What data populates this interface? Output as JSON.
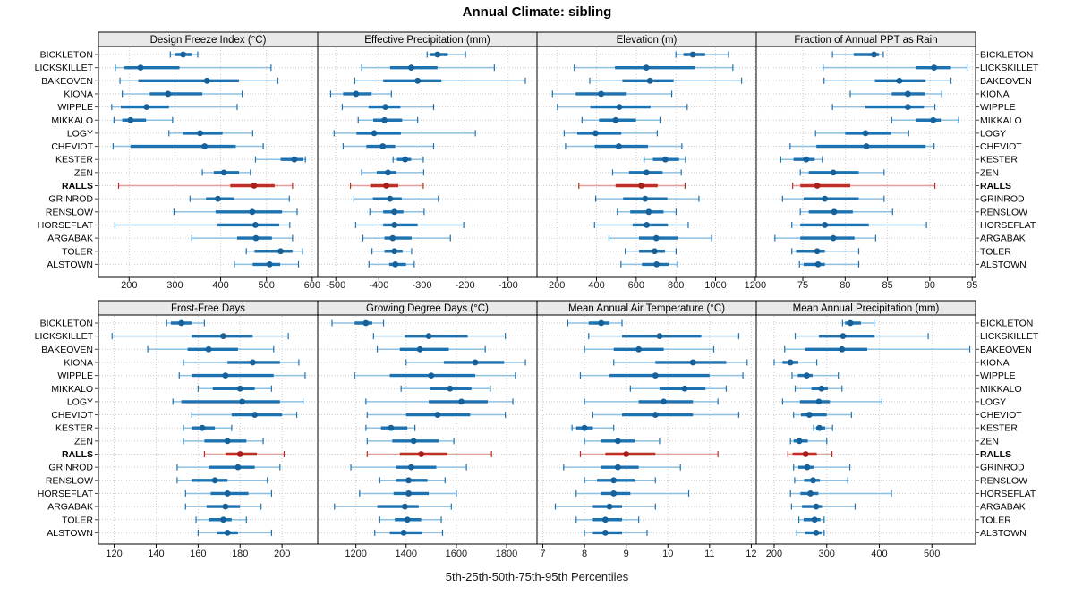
{
  "title": "Annual Climate: sibling",
  "caption": "5th-25th-50th-75th-95th Percentiles",
  "sites": [
    "BICKLETON",
    "LICKSKILLET",
    "BAKEOVEN",
    "KIONA",
    "WIPPLE",
    "MIKKALO",
    "LOGY",
    "CHEVIOT",
    "KESTER",
    "ZEN",
    "RALLS",
    "GRINROD",
    "RENSLOW",
    "HORSEFLAT",
    "ARGABAK",
    "TOLER",
    "ALSTOWN"
  ],
  "highlight_site": "RALLS",
  "colors": {
    "normal": "#1d72b2",
    "normal_light": "#8fc0e0",
    "normal_dot": "#166199",
    "highlight": "#bf2f28",
    "highlight_light": "#e29e9a",
    "highlight_dot": "#a81f1b",
    "strip_bg": "#e9e9e9",
    "grid": "#cccccc"
  },
  "chart_data": {
    "type": "scatter",
    "variant": "trellis-percentile-interval-dotplot",
    "title": "Annual Climate: sibling",
    "caption": "5th-25th-50th-75th-95th Percentiles",
    "percentiles": [
      5,
      25,
      50,
      75,
      95
    ],
    "legend_position": "none",
    "grid": "dotted",
    "layout": {
      "rows": 2,
      "cols": 4
    },
    "panels": [
      {
        "title": "Design Freeze Index (°C)",
        "xlim": [
          133,
          612
        ],
        "ticks": [
          200,
          300,
          400,
          500,
          600
        ],
        "values": [
          [
            290,
            300,
            318,
            337,
            350
          ],
          [
            170,
            190,
            225,
            310,
            510
          ],
          [
            180,
            220,
            370,
            440,
            525
          ],
          [
            185,
            245,
            285,
            360,
            447
          ],
          [
            162,
            182,
            238,
            287,
            436
          ],
          [
            167,
            185,
            203,
            237,
            295
          ],
          [
            287,
            318,
            355,
            404,
            470
          ],
          [
            165,
            203,
            365,
            433,
            493
          ],
          [
            476,
            531,
            561,
            580,
            585
          ],
          [
            360,
            385,
            407,
            440,
            465
          ],
          [
            177,
            421,
            473,
            518,
            557
          ],
          [
            333,
            368,
            394,
            428,
            550
          ],
          [
            298,
            389,
            469,
            534,
            567
          ],
          [
            169,
            393,
            476,
            528,
            551
          ],
          [
            337,
            436,
            477,
            512,
            557
          ],
          [
            456,
            474,
            531,
            557,
            579
          ],
          [
            430,
            470,
            507,
            530,
            570
          ]
        ]
      },
      {
        "title": "Effective Precipitation (mm)",
        "xlim": [
          -542,
          -33
        ],
        "ticks": [
          -500,
          -400,
          -300,
          -200,
          -100
        ],
        "values": [
          [
            -288,
            -281,
            -264,
            -240,
            -199
          ],
          [
            -440,
            -374,
            -325,
            -264,
            -132
          ],
          [
            -456,
            -390,
            -310,
            -255,
            -60
          ],
          [
            -512,
            -483,
            -453,
            -417,
            -371
          ],
          [
            -485,
            -424,
            -385,
            -350,
            -273
          ],
          [
            -448,
            -413,
            -387,
            -346,
            -310
          ],
          [
            -504,
            -452,
            -411,
            -349,
            -176
          ],
          [
            -483,
            -429,
            -391,
            -362,
            -273
          ],
          [
            -367,
            -358,
            -339,
            -325,
            -297
          ],
          [
            -440,
            -405,
            -379,
            -360,
            -296
          ],
          [
            -466,
            -420,
            -383,
            -355,
            -297
          ],
          [
            -458,
            -414,
            -374,
            -347,
            -262
          ],
          [
            -421,
            -390,
            -364,
            -343,
            -295
          ],
          [
            -454,
            -390,
            -364,
            -310,
            -203
          ],
          [
            -437,
            -387,
            -368,
            -324,
            -234
          ],
          [
            -416,
            -387,
            -364,
            -345,
            -324
          ],
          [
            -423,
            -376,
            -362,
            -337,
            -318
          ]
        ]
      },
      {
        "title": "Elevation (m)",
        "xlim": [
          100,
          1205
        ],
        "ticks": [
          200,
          400,
          600,
          800,
          1000,
          1200
        ],
        "values": [
          [
            800,
            838,
            885,
            947,
            1065
          ],
          [
            288,
            493,
            651,
            896,
            1087
          ],
          [
            366,
            530,
            669,
            789,
            1131
          ],
          [
            178,
            295,
            423,
            552,
            779
          ],
          [
            203,
            369,
            515,
            672,
            857
          ],
          [
            327,
            413,
            496,
            599,
            720
          ],
          [
            237,
            303,
            395,
            525,
            706
          ],
          [
            244,
            391,
            512,
            659,
            830
          ],
          [
            640,
            684,
            747,
            816,
            848
          ],
          [
            481,
            564,
            652,
            733,
            827
          ],
          [
            311,
            496,
            626,
            708,
            846
          ],
          [
            396,
            534,
            645,
            757,
            916
          ],
          [
            505,
            570,
            663,
            738,
            801
          ],
          [
            390,
            582,
            653,
            760,
            862
          ],
          [
            463,
            614,
            701,
            808,
            980
          ],
          [
            545,
            614,
            693,
            745,
            801
          ],
          [
            523,
            629,
            703,
            763,
            809
          ]
        ]
      },
      {
        "title": "Fraction of Annual PPT as Rain",
        "xlim": [
          69.5,
          95.4
        ],
        "ticks": [
          75,
          80,
          85,
          90,
          95
        ],
        "values": [
          [
            78.5,
            81.0,
            83.4,
            84.0,
            84.5
          ],
          [
            77.4,
            88.4,
            90.5,
            92.5,
            94.4
          ],
          [
            77.5,
            83.5,
            86.4,
            89.5,
            92.5
          ],
          [
            80.6,
            85.5,
            87.4,
            89.4,
            91.4
          ],
          [
            78.5,
            82.4,
            87.4,
            89.3,
            90.6
          ],
          [
            85.5,
            88.4,
            90.4,
            91.3,
            93.4
          ],
          [
            76.5,
            80.0,
            82.4,
            85.4,
            87.5
          ],
          [
            73.5,
            76.6,
            82.5,
            89.5,
            90.5
          ],
          [
            72.4,
            73.9,
            75.4,
            76.4,
            77.3
          ],
          [
            74.7,
            75.7,
            78.6,
            81.6,
            84.6
          ],
          [
            73.8,
            74.7,
            76.7,
            80.6,
            90.6
          ],
          [
            72.6,
            75.1,
            77.6,
            81.6,
            84.6
          ],
          [
            74.7,
            75.7,
            78.7,
            80.9,
            85.6
          ],
          [
            73.7,
            74.7,
            77.6,
            82.8,
            89.6
          ],
          [
            71.7,
            74.7,
            78.6,
            81.1,
            83.6
          ],
          [
            73.7,
            74.2,
            76.7,
            77.6,
            81.6
          ],
          [
            74.6,
            75.1,
            76.8,
            77.6,
            81.6
          ]
        ]
      },
      {
        "title": "Frost-Free Days",
        "xlim": [
          112.5,
          217
        ],
        "ticks": [
          120,
          140,
          160,
          180,
          200
        ],
        "values": [
          [
            145,
            147,
            152,
            157,
            163
          ],
          [
            119,
            157,
            172,
            186,
            203
          ],
          [
            136,
            155,
            165,
            179,
            196
          ],
          [
            153,
            174,
            186,
            199,
            208
          ],
          [
            151,
            157,
            173,
            196,
            211
          ],
          [
            160,
            167,
            180,
            187,
            195
          ],
          [
            148,
            152,
            181,
            199,
            210
          ],
          [
            157,
            176,
            187,
            200,
            207
          ],
          [
            153,
            157,
            162,
            168,
            176
          ],
          [
            153,
            163,
            174,
            183,
            191
          ],
          [
            163,
            173,
            180,
            188,
            201
          ],
          [
            150,
            165,
            179,
            187,
            199
          ],
          [
            150,
            157,
            168,
            174,
            193
          ],
          [
            154,
            166,
            174,
            184,
            195
          ],
          [
            154,
            164,
            173,
            180,
            190
          ],
          [
            159,
            165,
            172,
            176,
            183
          ],
          [
            160,
            169,
            174,
            179,
            195
          ]
        ]
      },
      {
        "title": "Growing Degree Days (°C)",
        "xlim": [
          1048,
          1921
        ],
        "ticks": [
          1200,
          1400,
          1600,
          1800
        ],
        "values": [
          [
            1105,
            1195,
            1240,
            1265,
            1310
          ],
          [
            1270,
            1395,
            1490,
            1645,
            1795
          ],
          [
            1285,
            1375,
            1455,
            1570,
            1715
          ],
          [
            1400,
            1550,
            1675,
            1790,
            1875
          ],
          [
            1195,
            1335,
            1500,
            1675,
            1835
          ],
          [
            1380,
            1495,
            1575,
            1660,
            1735
          ],
          [
            1240,
            1490,
            1620,
            1725,
            1825
          ],
          [
            1245,
            1400,
            1525,
            1655,
            1795
          ],
          [
            1240,
            1300,
            1340,
            1405,
            1435
          ],
          [
            1245,
            1345,
            1430,
            1530,
            1590
          ],
          [
            1245,
            1375,
            1460,
            1565,
            1740
          ],
          [
            1180,
            1360,
            1420,
            1520,
            1640
          ],
          [
            1295,
            1360,
            1410,
            1485,
            1555
          ],
          [
            1215,
            1350,
            1410,
            1490,
            1600
          ],
          [
            1115,
            1285,
            1395,
            1450,
            1580
          ],
          [
            1295,
            1355,
            1405,
            1460,
            1540
          ],
          [
            1275,
            1335,
            1390,
            1465,
            1545
          ]
        ]
      },
      {
        "title": "Mean Annual Air Temperature (°C)",
        "xlim": [
          6.86,
          12.12
        ],
        "ticks": [
          7,
          8,
          9,
          10,
          11,
          12
        ],
        "values": [
          [
            7.6,
            8.1,
            8.4,
            8.6,
            8.9
          ],
          [
            8.1,
            8.9,
            9.8,
            10.8,
            11.7
          ],
          [
            8.0,
            8.7,
            9.3,
            9.9,
            11.1
          ],
          [
            8.7,
            9.7,
            10.6,
            11.4,
            11.9
          ],
          [
            7.9,
            8.6,
            9.7,
            11.0,
            11.8
          ],
          [
            9.1,
            9.8,
            10.4,
            10.9,
            11.4
          ],
          [
            8.0,
            9.3,
            9.9,
            10.6,
            11.2
          ],
          [
            8.2,
            8.9,
            9.7,
            10.6,
            11.7
          ],
          [
            7.7,
            7.8,
            8.0,
            8.2,
            8.7
          ],
          [
            8.0,
            8.4,
            8.8,
            9.2,
            9.8
          ],
          [
            7.9,
            8.5,
            9.0,
            9.7,
            11.2
          ],
          [
            7.5,
            8.4,
            8.8,
            9.3,
            10.3
          ],
          [
            8.0,
            8.3,
            8.7,
            9.2,
            9.7
          ],
          [
            7.8,
            8.4,
            8.7,
            9.1,
            10.5
          ],
          [
            7.3,
            8.2,
            8.6,
            8.9,
            9.7
          ],
          [
            7.8,
            8.2,
            8.5,
            8.9,
            9.3
          ],
          [
            8.0,
            8.2,
            8.5,
            8.9,
            9.5
          ]
        ]
      },
      {
        "title": "Mean Annual Precipitation (mm)",
        "xlim": [
          166,
          583
        ],
        "ticks": [
          200,
          300,
          400,
          500
        ],
        "values": [
          [
            330,
            335,
            345,
            365,
            390
          ],
          [
            240,
            285,
            331,
            391,
            493
          ],
          [
            220,
            259,
            329,
            377,
            572
          ],
          [
            200,
            216,
            231,
            246,
            281
          ],
          [
            234,
            245,
            262,
            273,
            322
          ],
          [
            240,
            271,
            290,
            302,
            329
          ],
          [
            216,
            249,
            285,
            306,
            405
          ],
          [
            237,
            251,
            267,
            300,
            347
          ],
          [
            275,
            280,
            286,
            297,
            311
          ],
          [
            231,
            237,
            248,
            264,
            300
          ],
          [
            226,
            235,
            260,
            281,
            310
          ],
          [
            237,
            246,
            263,
            275,
            344
          ],
          [
            239,
            257,
            274,
            287,
            340
          ],
          [
            231,
            250,
            269,
            284,
            423
          ],
          [
            233,
            253,
            280,
            291,
            354
          ],
          [
            247,
            256,
            277,
            288,
            295
          ],
          [
            243,
            259,
            280,
            290,
            295
          ]
        ]
      }
    ]
  }
}
